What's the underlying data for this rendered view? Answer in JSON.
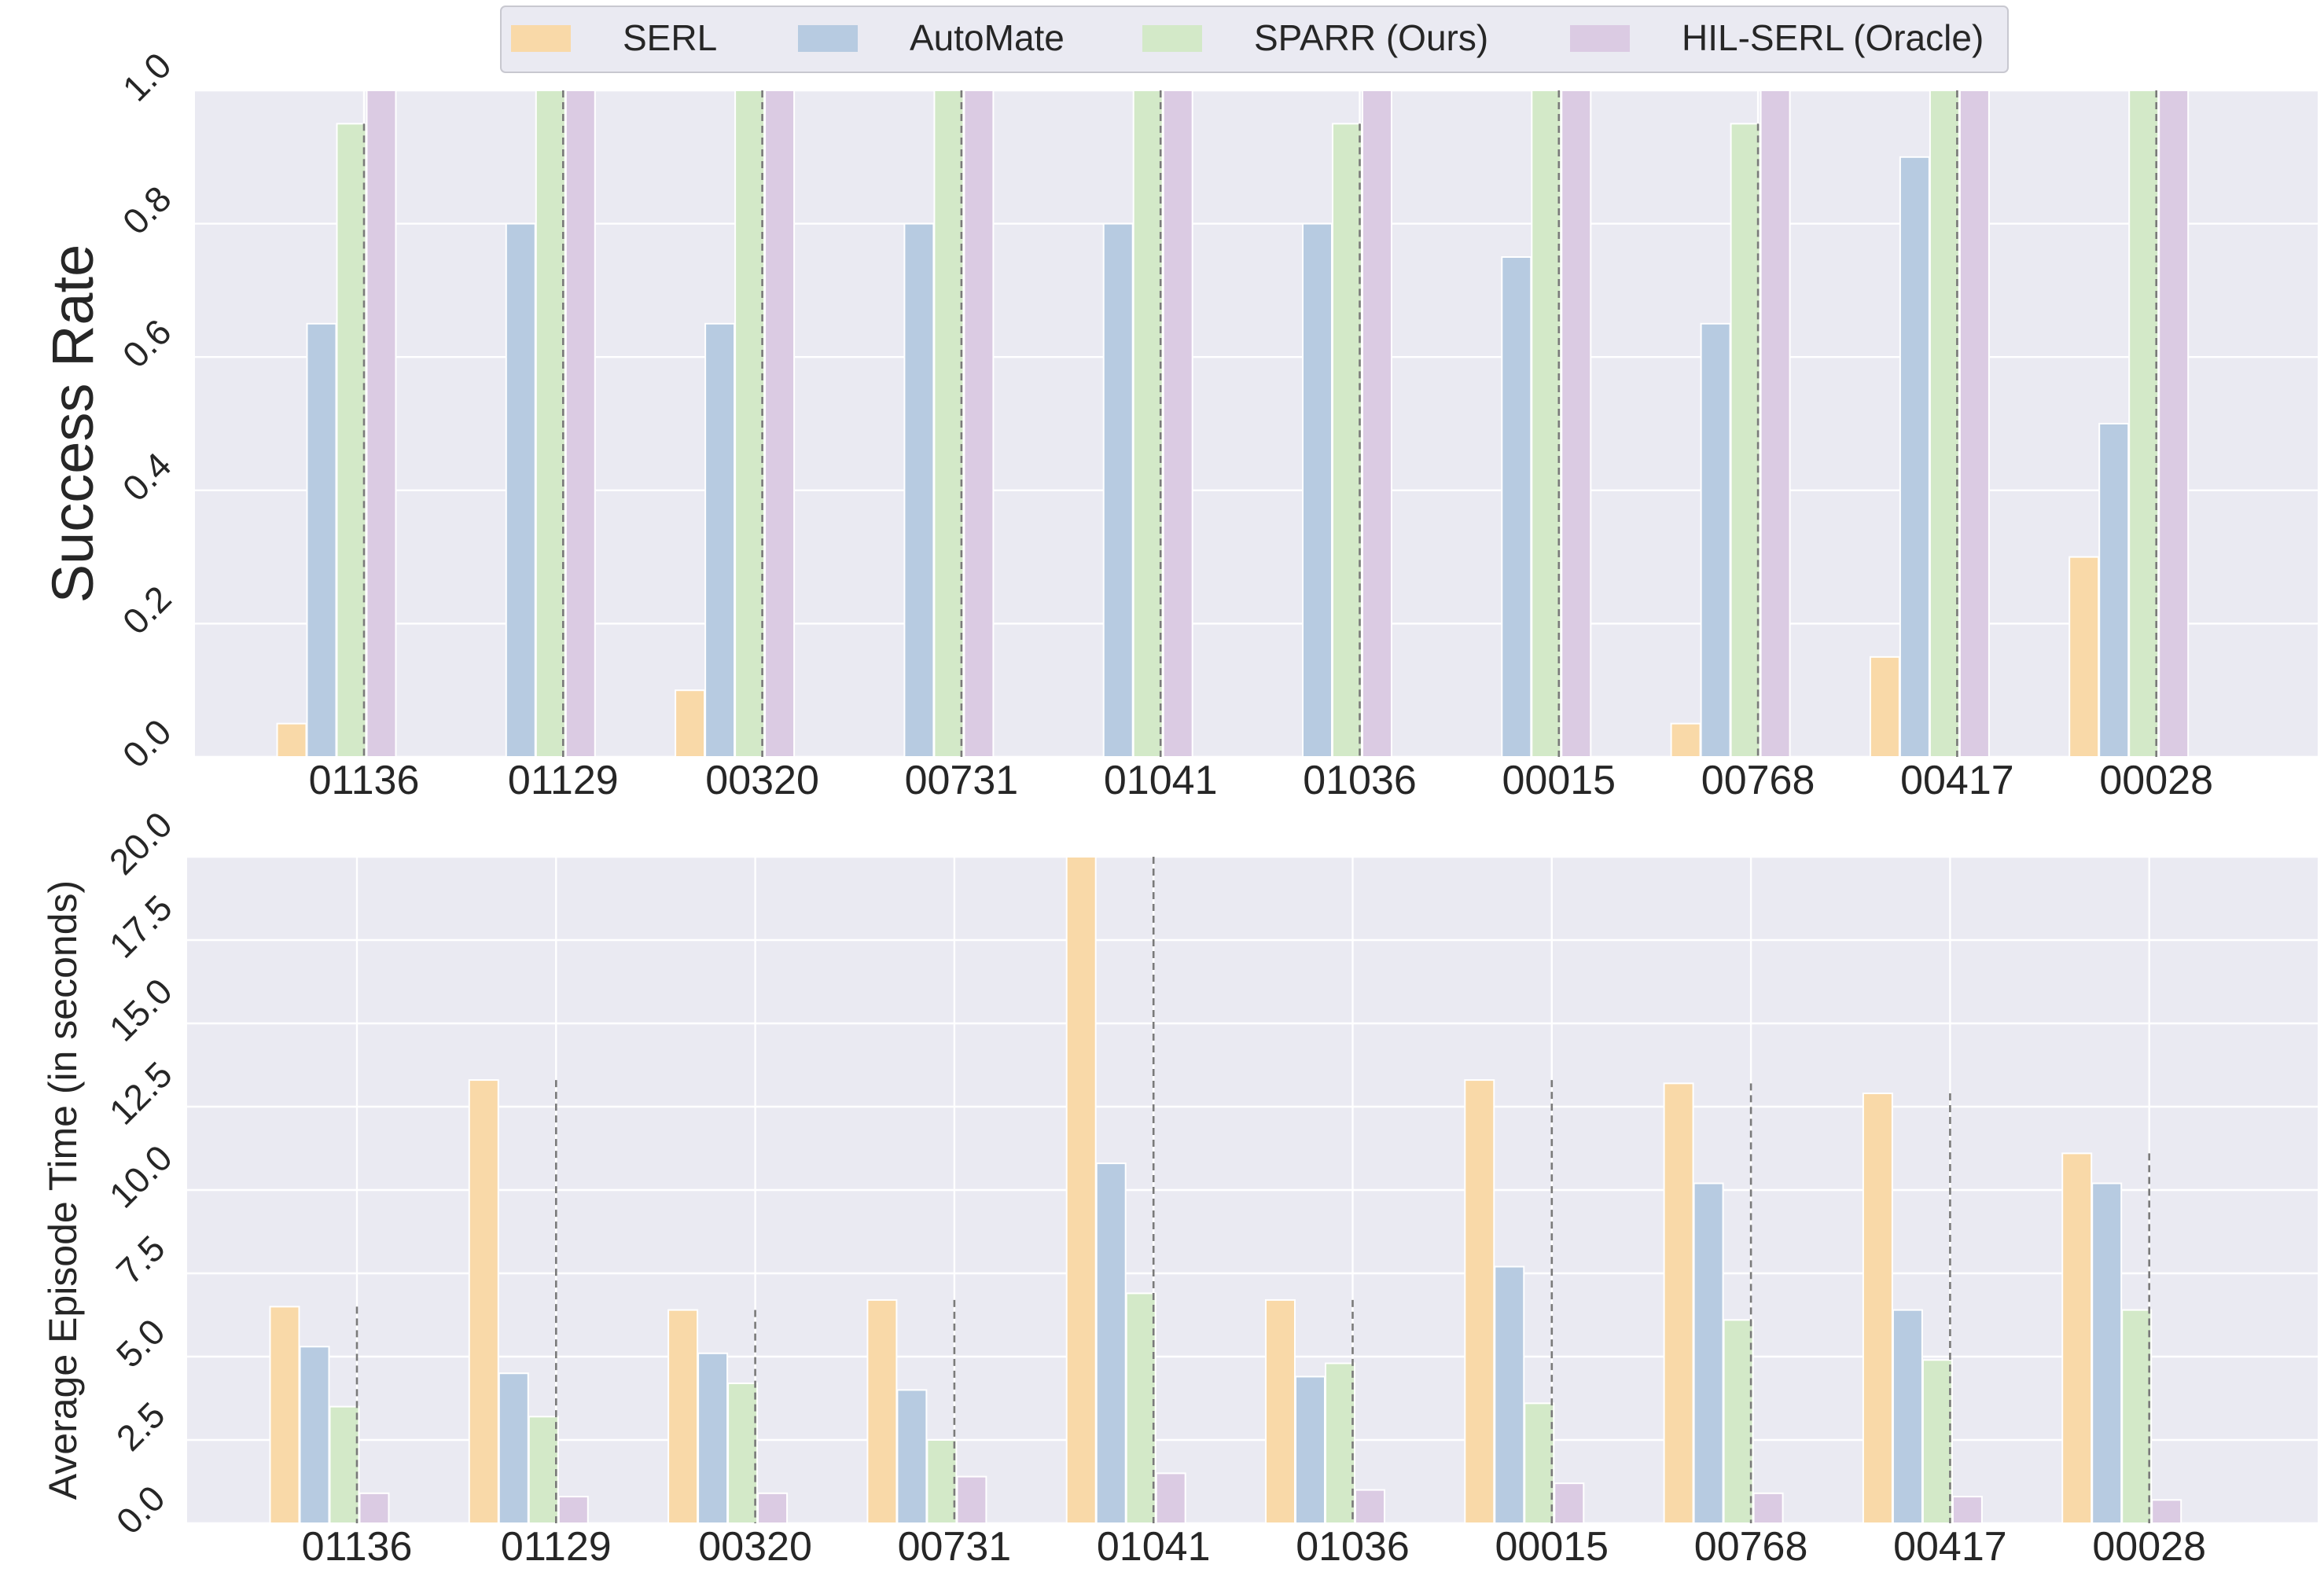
{
  "legend": {
    "placement": "top-center",
    "entries": [
      "SERL",
      "AutoMate",
      "SPARR (Ours)",
      "HIL-SERL (Oracle)"
    ]
  },
  "colors": {
    "SERL": "#f9d9a8",
    "AutoMate": "#b7cbe1",
    "SPARR (Ours)": "#d3e9c8",
    "HIL-SERL (Oracle)": "#dbcbe3",
    "background": "#eaeaf2",
    "grid": "#ffffff",
    "reference_line": "#7a7a7a"
  },
  "chart_data": [
    {
      "type": "bar",
      "ylabel": "Success Rate",
      "xlabel": "",
      "ylim": [
        0,
        1.0
      ],
      "yticks": [
        "0.0",
        "0.2",
        "0.4",
        "0.6",
        "0.8",
        "1.0"
      ],
      "grid": true,
      "reference_line": "dashed vertical line between SPARR (Ours) and HIL-SERL (Oracle) bars in each group",
      "categories": [
        "01136",
        "01129",
        "00320",
        "00731",
        "01041",
        "01036",
        "00015",
        "00768",
        "00417",
        "00028"
      ],
      "series": [
        {
          "name": "SERL",
          "values": [
            0.05,
            0.0,
            0.1,
            0.0,
            0.0,
            0.0,
            0.0,
            0.05,
            0.15,
            0.3
          ]
        },
        {
          "name": "AutoMate",
          "values": [
            0.65,
            0.8,
            0.65,
            0.8,
            0.8,
            0.8,
            0.75,
            0.65,
            0.9,
            0.5
          ]
        },
        {
          "name": "SPARR (Ours)",
          "values": [
            0.95,
            1.0,
            1.0,
            1.0,
            1.0,
            0.95,
            1.0,
            0.95,
            1.0,
            1.0
          ]
        },
        {
          "name": "HIL-SERL (Oracle)",
          "values": [
            1.0,
            1.0,
            1.0,
            1.0,
            1.0,
            1.0,
            1.0,
            1.0,
            1.0,
            1.0
          ]
        }
      ]
    },
    {
      "type": "bar",
      "ylabel": "Average Episode Time (in seconds)",
      "xlabel": "",
      "ylim": [
        0,
        20.0
      ],
      "yticks": [
        "0.0",
        "2.5",
        "5.0",
        "7.5",
        "10.0",
        "12.5",
        "15.0",
        "17.5",
        "20.0"
      ],
      "grid": true,
      "reference_line": "dashed vertical line between SPARR (Ours) and HIL-SERL (Oracle) bars in each group",
      "categories": [
        "01136",
        "01129",
        "00320",
        "00731",
        "01041",
        "01036",
        "00015",
        "00768",
        "00417",
        "00028"
      ],
      "series": [
        {
          "name": "SERL",
          "values": [
            6.5,
            13.3,
            6.4,
            6.7,
            20.0,
            6.7,
            13.3,
            13.2,
            12.9,
            11.1
          ]
        },
        {
          "name": "AutoMate",
          "values": [
            5.3,
            4.5,
            5.1,
            4.0,
            10.8,
            4.4,
            7.7,
            10.2,
            6.4,
            10.2
          ]
        },
        {
          "name": "SPARR (Ours)",
          "values": [
            3.5,
            3.2,
            4.2,
            2.5,
            6.9,
            4.8,
            3.6,
            6.1,
            4.9,
            6.4
          ]
        },
        {
          "name": "HIL-SERL (Oracle)",
          "values": [
            0.9,
            0.8,
            0.9,
            1.4,
            1.5,
            1.0,
            1.2,
            0.9,
            0.8,
            0.7
          ]
        }
      ]
    }
  ]
}
